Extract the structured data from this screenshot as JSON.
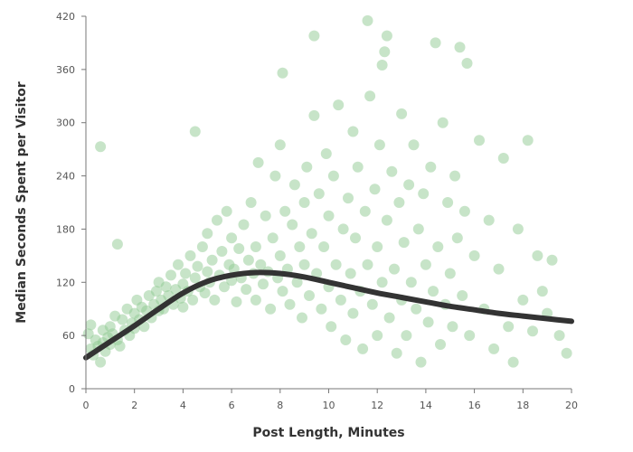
{
  "chart_data": {
    "type": "scatter",
    "title": "",
    "xlabel": "Post Length, Minutes",
    "ylabel": "Median Seconds Spent per Visitor",
    "xlim": [
      0,
      20
    ],
    "ylim": [
      0,
      420
    ],
    "xticks": [
      0,
      2,
      4,
      6,
      8,
      10,
      12,
      14,
      16,
      18,
      20
    ],
    "yticks": [
      0,
      60,
      120,
      180,
      240,
      300,
      360,
      420
    ],
    "grid": false,
    "colors": {
      "points": "#8fca92",
      "trend": "#333333"
    },
    "series": [
      {
        "kind": "points",
        "values": [
          [
            0.1,
            62
          ],
          [
            0.2,
            45
          ],
          [
            0.2,
            72
          ],
          [
            0.3,
            38
          ],
          [
            0.4,
            55
          ],
          [
            0.5,
            48
          ],
          [
            0.6,
            30
          ],
          [
            0.7,
            66
          ],
          [
            0.7,
            52
          ],
          [
            0.8,
            42
          ],
          [
            0.9,
            58
          ],
          [
            1.0,
            70
          ],
          [
            1.0,
            50
          ],
          [
            1.1,
            62
          ],
          [
            1.2,
            82
          ],
          [
            1.3,
            55
          ],
          [
            1.4,
            48
          ],
          [
            1.5,
            78
          ],
          [
            1.6,
            66
          ],
          [
            1.7,
            90
          ],
          [
            1.8,
            60
          ],
          [
            1.9,
            74
          ],
          [
            2.0,
            85
          ],
          [
            2.0,
            68
          ],
          [
            2.1,
            100
          ],
          [
            2.2,
            78
          ],
          [
            2.3,
            92
          ],
          [
            2.4,
            70
          ],
          [
            2.5,
            88
          ],
          [
            2.6,
            105
          ],
          [
            2.7,
            80
          ],
          [
            2.8,
            95
          ],
          [
            2.9,
            110
          ],
          [
            3.0,
            88
          ],
          [
            3.0,
            120
          ],
          [
            3.1,
            100
          ],
          [
            3.2,
            90
          ],
          [
            3.3,
            115
          ],
          [
            3.4,
            105
          ],
          [
            3.5,
            128
          ],
          [
            3.6,
            95
          ],
          [
            3.7,
            112
          ],
          [
            3.8,
            140
          ],
          [
            3.9,
            102
          ],
          [
            4.0,
            118
          ],
          [
            4.0,
            92
          ],
          [
            4.1,
            130
          ],
          [
            4.2,
            110
          ],
          [
            4.3,
            150
          ],
          [
            4.4,
            100
          ],
          [
            4.5,
            125
          ],
          [
            4.6,
            138
          ],
          [
            4.7,
            115
          ],
          [
            4.8,
            160
          ],
          [
            4.9,
            108
          ],
          [
            5.0,
            132
          ],
          [
            5.0,
            175
          ],
          [
            5.1,
            120
          ],
          [
            5.2,
            145
          ],
          [
            5.3,
            100
          ],
          [
            5.4,
            190
          ],
          [
            5.5,
            128
          ],
          [
            5.6,
            155
          ],
          [
            5.7,
            115
          ],
          [
            5.8,
            200
          ],
          [
            5.9,
            140
          ],
          [
            6.0,
            122
          ],
          [
            6.0,
            170
          ],
          [
            6.1,
            135
          ],
          [
            6.2,
            98
          ],
          [
            6.3,
            158
          ],
          [
            6.4,
            125
          ],
          [
            6.5,
            185
          ],
          [
            6.6,
            112
          ],
          [
            6.7,
            145
          ],
          [
            6.8,
            210
          ],
          [
            6.9,
            130
          ],
          [
            7.0,
            160
          ],
          [
            7.0,
            100
          ],
          [
            7.1,
            255
          ],
          [
            7.2,
            140
          ],
          [
            7.3,
            118
          ],
          [
            7.4,
            195
          ],
          [
            7.5,
            132
          ],
          [
            7.6,
            90
          ],
          [
            7.7,
            170
          ],
          [
            7.8,
            240
          ],
          [
            7.9,
            125
          ],
          [
            8.0,
            150
          ],
          [
            8.0,
            275
          ],
          [
            8.1,
            110
          ],
          [
            8.2,
            200
          ],
          [
            8.3,
            135
          ],
          [
            8.4,
            95
          ],
          [
            8.5,
            185
          ],
          [
            8.6,
            230
          ],
          [
            8.7,
            120
          ],
          [
            8.8,
            160
          ],
          [
            8.9,
            80
          ],
          [
            9.0,
            210
          ],
          [
            9.0,
            140
          ],
          [
            9.1,
            250
          ],
          [
            9.2,
            105
          ],
          [
            9.3,
            175
          ],
          [
            9.4,
            308
          ],
          [
            9.5,
            130
          ],
          [
            9.6,
            220
          ],
          [
            9.7,
            90
          ],
          [
            9.8,
            160
          ],
          [
            9.9,
            265
          ],
          [
            10.0,
            115
          ],
          [
            10.0,
            195
          ],
          [
            10.1,
            70
          ],
          [
            10.2,
            240
          ],
          [
            10.3,
            140
          ],
          [
            10.4,
            320
          ],
          [
            10.5,
            100
          ],
          [
            10.6,
            180
          ],
          [
            10.7,
            55
          ],
          [
            10.8,
            215
          ],
          [
            10.9,
            130
          ],
          [
            11.0,
            290
          ],
          [
            11.0,
            85
          ],
          [
            11.1,
            170
          ],
          [
            11.2,
            250
          ],
          [
            11.3,
            110
          ],
          [
            11.4,
            45
          ],
          [
            11.5,
            200
          ],
          [
            11.6,
            140
          ],
          [
            11.7,
            330
          ],
          [
            11.8,
            95
          ],
          [
            11.9,
            225
          ],
          [
            12.0,
            160
          ],
          [
            12.0,
            60
          ],
          [
            12.1,
            275
          ],
          [
            12.2,
            120
          ],
          [
            12.3,
            380
          ],
          [
            12.4,
            190
          ],
          [
            12.5,
            80
          ],
          [
            12.6,
            245
          ],
          [
            12.7,
            135
          ],
          [
            12.8,
            40
          ],
          [
            12.9,
            210
          ],
          [
            13.0,
            100
          ],
          [
            13.0,
            310
          ],
          [
            13.1,
            165
          ],
          [
            13.2,
            60
          ],
          [
            13.3,
            230
          ],
          [
            13.4,
            120
          ],
          [
            13.5,
            275
          ],
          [
            13.6,
            90
          ],
          [
            13.7,
            180
          ],
          [
            13.8,
            30
          ],
          [
            13.9,
            220
          ],
          [
            14.0,
            140
          ],
          [
            14.1,
            75
          ],
          [
            14.2,
            250
          ],
          [
            14.3,
            110
          ],
          [
            14.4,
            390
          ],
          [
            14.5,
            160
          ],
          [
            14.6,
            50
          ],
          [
            14.7,
            300
          ],
          [
            14.8,
            95
          ],
          [
            14.9,
            210
          ],
          [
            15.0,
            130
          ],
          [
            15.1,
            70
          ],
          [
            15.2,
            240
          ],
          [
            15.3,
            170
          ],
          [
            15.4,
            385
          ],
          [
            15.5,
            105
          ],
          [
            15.6,
            200
          ],
          [
            15.8,
            60
          ],
          [
            16.0,
            150
          ],
          [
            16.2,
            280
          ],
          [
            16.4,
            90
          ],
          [
            16.6,
            190
          ],
          [
            16.8,
            45
          ],
          [
            17.0,
            135
          ],
          [
            17.2,
            260
          ],
          [
            17.4,
            70
          ],
          [
            17.6,
            30
          ],
          [
            17.8,
            180
          ],
          [
            18.0,
            100
          ],
          [
            18.2,
            280
          ],
          [
            18.4,
            65
          ],
          [
            18.6,
            150
          ],
          [
            18.8,
            110
          ],
          [
            19.0,
            85
          ],
          [
            19.2,
            145
          ],
          [
            19.5,
            60
          ],
          [
            19.8,
            40
          ],
          [
            0.6,
            273
          ],
          [
            1.3,
            163
          ],
          [
            4.5,
            290
          ],
          [
            9.4,
            398
          ],
          [
            11.6,
            415
          ],
          [
            12.4,
            398
          ],
          [
            8.1,
            356
          ],
          [
            15.7,
            367
          ],
          [
            12.2,
            365
          ]
        ]
      },
      {
        "kind": "trend",
        "values": [
          [
            0,
            35
          ],
          [
            0.5,
            44
          ],
          [
            1,
            53
          ],
          [
            2,
            71
          ],
          [
            3,
            90
          ],
          [
            4,
            108
          ],
          [
            5,
            121
          ],
          [
            6,
            128
          ],
          [
            7,
            131
          ],
          [
            8,
            130
          ],
          [
            9,
            126
          ],
          [
            10,
            120
          ],
          [
            11,
            114
          ],
          [
            12,
            108
          ],
          [
            13,
            103
          ],
          [
            14,
            98
          ],
          [
            15,
            93
          ],
          [
            16,
            89
          ],
          [
            17,
            85
          ],
          [
            18,
            82
          ],
          [
            19,
            79
          ],
          [
            20,
            76
          ]
        ]
      }
    ]
  }
}
